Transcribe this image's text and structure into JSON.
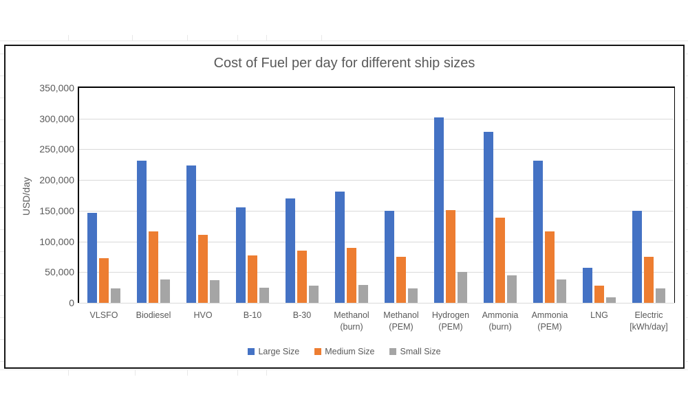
{
  "chart_data": {
    "type": "bar",
    "title": "Cost of Fuel per day for different ship sizes",
    "xlabel": "",
    "ylabel": "USD/day",
    "ylim": [
      0,
      350000
    ],
    "ytick_step": 50000,
    "ytick_labels": [
      "0",
      "50,000",
      "100,000",
      "150,000",
      "200,000",
      "250,000",
      "300,000",
      "350,000"
    ],
    "grid": true,
    "legend_position": "bottom",
    "categories": [
      "VLSFO",
      "Biodiesel",
      "HVO",
      "B-10",
      "B-30",
      "Methanol\n(burn)",
      "Methanol\n(PEM)",
      "Hydrogen\n(PEM)",
      "Ammonia\n(burn)",
      "Ammonia\n(PEM)",
      "LNG",
      "Electric\n[kWh/day]"
    ],
    "series": [
      {
        "name": "Large Size",
        "color": "#4472C4",
        "values": [
          146000,
          231000,
          224000,
          155000,
          170000,
          181000,
          150000,
          302000,
          278000,
          232000,
          57000,
          150000
        ]
      },
      {
        "name": "Medium Size",
        "color": "#ED7D31",
        "values": [
          73000,
          116000,
          111000,
          77000,
          85000,
          90000,
          75000,
          151000,
          139000,
          116000,
          28000,
          75000
        ]
      },
      {
        "name": "Small Size",
        "color": "#A5A5A5",
        "values": [
          24000,
          38000,
          37000,
          25000,
          28000,
          29000,
          24000,
          50000,
          45000,
          38000,
          9500,
          24000
        ]
      }
    ]
  },
  "colors": {
    "axis_text": "#595959",
    "gridline": "#d9d9d9",
    "plot_border": "#000000"
  }
}
